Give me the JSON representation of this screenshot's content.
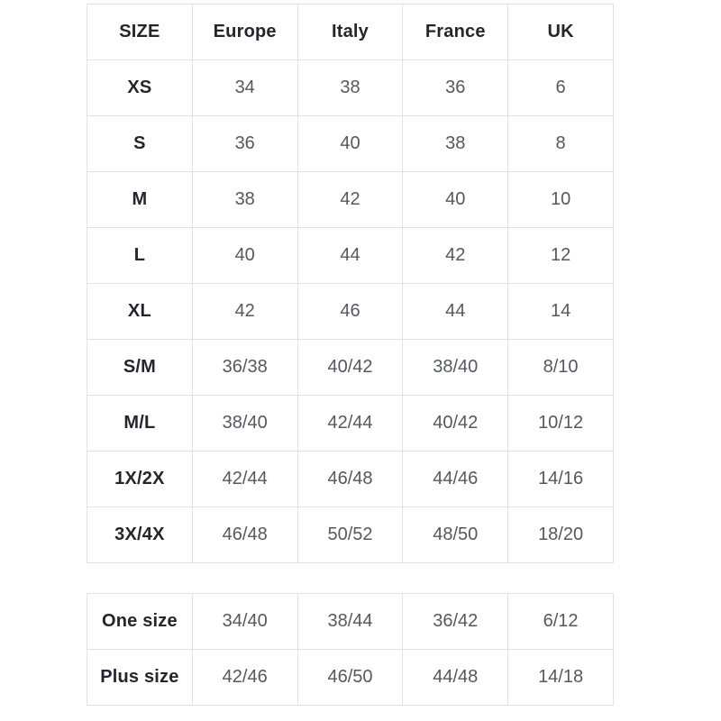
{
  "colors": {
    "background": "#ffffff",
    "heading_text": "#25252e",
    "value_text": "#54595f",
    "border": "#e1e1e1"
  },
  "chart_data": [
    {
      "type": "table",
      "columns": [
        "SIZE",
        "Europe",
        "Italy",
        "France",
        "UK"
      ],
      "rows": [
        [
          "XS",
          "34",
          "38",
          "36",
          "6"
        ],
        [
          "S",
          "36",
          "40",
          "38",
          "8"
        ],
        [
          "M",
          "38",
          "42",
          "40",
          "10"
        ],
        [
          "L",
          "40",
          "44",
          "42",
          "12"
        ],
        [
          "XL",
          "42",
          "46",
          "44",
          "14"
        ],
        [
          "S/M",
          "36/38",
          "40/42",
          "38/40",
          "8/10"
        ],
        [
          "M/L",
          "38/40",
          "42/44",
          "40/42",
          "10/12"
        ],
        [
          "1X/2X",
          "42/44",
          "46/48",
          "44/46",
          "14/16"
        ],
        [
          "3X/4X",
          "46/48",
          "50/52",
          "48/50",
          "18/20"
        ]
      ],
      "layout": {
        "grid": true,
        "header_row": true,
        "cell_alignment": "center"
      }
    },
    {
      "type": "table",
      "columns": [],
      "rows": [
        [
          "One size",
          "34/40",
          "38/44",
          "36/42",
          "6/12"
        ],
        [
          "Plus size",
          "42/46",
          "46/50",
          "44/48",
          "14/18"
        ]
      ],
      "layout": {
        "grid": true,
        "header_row": false,
        "cell_alignment": "center"
      }
    }
  ]
}
